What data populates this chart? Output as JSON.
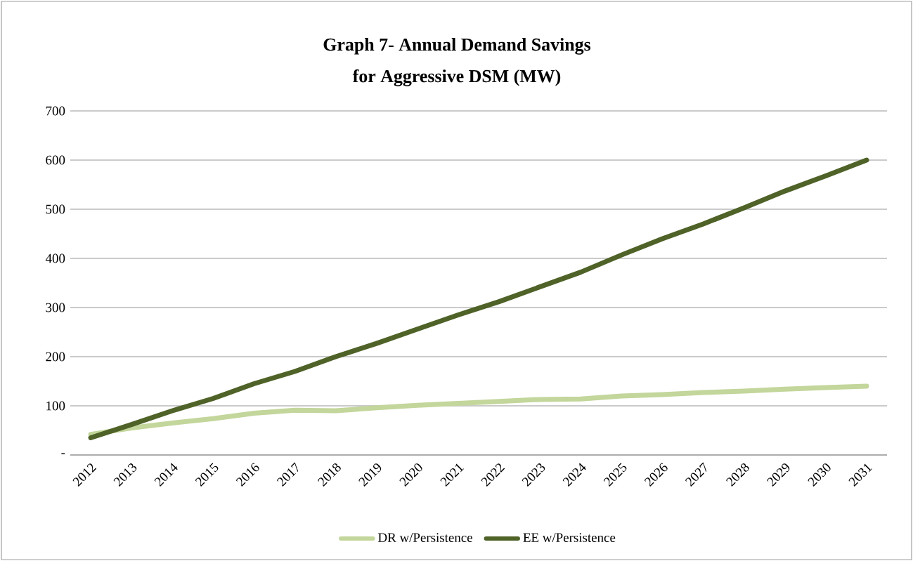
{
  "chart_data": {
    "type": "line",
    "title": "Graph 7- Annual Demand Savings",
    "subtitle": "for Aggressive DSM (MW)",
    "categories": [
      "2012",
      "2013",
      "2014",
      "2015",
      "2016",
      "2017",
      "2018",
      "2019",
      "2020",
      "2021",
      "2022",
      "2023",
      "2024",
      "2025",
      "2026",
      "2027",
      "2028",
      "2029",
      "2030",
      "2031"
    ],
    "series": [
      {
        "name": "DR w/Persistence",
        "color": "#c3d69b",
        "values": [
          42,
          55,
          65,
          74,
          85,
          91,
          90,
          96,
          101,
          105,
          109,
          113,
          114,
          120,
          123,
          127,
          130,
          134,
          137,
          140
        ]
      },
      {
        "name": "EE w/Persistence",
        "color": "#4f6228",
        "values": [
          35,
          62,
          90,
          115,
          145,
          170,
          200,
          227,
          256,
          285,
          312,
          342,
          372,
          407,
          440,
          470,
          503,
          537,
          568,
          600
        ]
      }
    ],
    "ylim": [
      0,
      700
    ],
    "yticks": [
      {
        "value": 0,
        "label": "-"
      },
      100,
      200,
      300,
      400,
      500,
      600,
      700
    ],
    "grid": "y",
    "legend": "bottom",
    "marker": "none",
    "line_style": "solid"
  }
}
